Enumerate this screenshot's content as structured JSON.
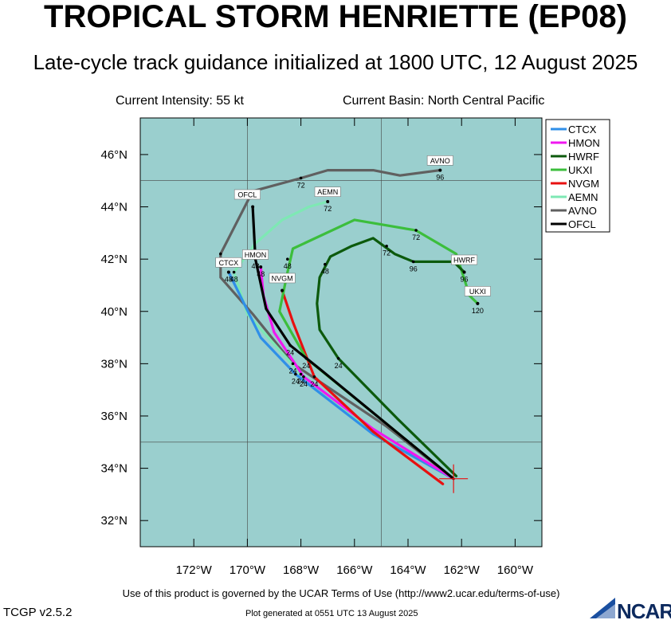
{
  "header": {
    "title": "TROPICAL STORM HENRIETTE (EP08)",
    "subtitle": "Late-cycle track guidance initialized at 1800 UTC, 12 August 2025",
    "intensity": "Current Intensity: 55 kt",
    "basin": "Current Basin: North Central Pacific"
  },
  "map": {
    "ocean_color": "#9acfce",
    "lon_range": [
      -174,
      -159
    ],
    "lat_range": [
      31,
      47.4
    ],
    "lon_ticks": [
      "172°W",
      "170°W",
      "168°W",
      "166°W",
      "164°W",
      "162°W",
      "160°W"
    ],
    "lat_ticks": [
      "32°N",
      "34°N",
      "36°N",
      "38°N",
      "40°N",
      "42°N",
      "44°N",
      "46°N"
    ],
    "current_position": {
      "lon": -162.3,
      "lat": 33.6
    }
  },
  "legend": {
    "entries": [
      {
        "name": "CTCX",
        "color": "#2f8fe8"
      },
      {
        "name": "HMON",
        "color": "#f018f0"
      },
      {
        "name": "HWRF",
        "color": "#0c5a0c"
      },
      {
        "name": "UKXI",
        "color": "#3cbe3c"
      },
      {
        "name": "NVGM",
        "color": "#e81010"
      },
      {
        "name": "AEMN",
        "color": "#7ee8b4"
      },
      {
        "name": "AVNO",
        "color": "#606060"
      },
      {
        "name": "OFCL",
        "color": "#000000"
      }
    ]
  },
  "tracks": [
    {
      "name": "AVNO",
      "color": "#606060",
      "label": "AVNO",
      "points": [
        [
          -162.3,
          33.6
        ],
        [
          -164.8,
          35.6
        ],
        [
          -168.3,
          38.0
        ],
        [
          -169.8,
          39.9
        ],
        [
          -171.0,
          41.3
        ],
        [
          -171.0,
          42.2
        ],
        [
          -170.5,
          43.2
        ],
        [
          -169.8,
          44.6
        ],
        [
          -168.0,
          45.1
        ],
        [
          -167.0,
          45.4
        ],
        [
          -165.3,
          45.4
        ],
        [
          -164.3,
          45.2
        ],
        [
          -162.8,
          45.4
        ]
      ],
      "hour_labels": [
        {
          "text": "24",
          "lon": -168.3,
          "lat": 38.0
        },
        {
          "text": "48",
          "lon": -171.0,
          "lat": 42.2
        },
        {
          "text": "72",
          "lon": -168.0,
          "lat": 45.1
        },
        {
          "text": "96",
          "lon": -162.8,
          "lat": 45.4
        }
      ]
    },
    {
      "name": "AEMN",
      "color": "#7ee8b4",
      "label": "AEMN",
      "points": [
        [
          -162.3,
          33.6
        ],
        [
          -165.3,
          35.4
        ],
        [
          -168.0,
          37.6
        ],
        [
          -170.0,
          39.9
        ],
        [
          -170.5,
          41.5
        ],
        [
          -169.7,
          42.6
        ],
        [
          -168.7,
          43.5
        ],
        [
          -167.7,
          44.0
        ],
        [
          -167.0,
          44.2
        ]
      ],
      "hour_labels": [
        {
          "text": "24",
          "lon": -168.0,
          "lat": 37.6
        },
        {
          "text": "48",
          "lon": -170.5,
          "lat": 41.5
        },
        {
          "text": "72",
          "lon": -167.0,
          "lat": 44.2
        }
      ]
    },
    {
      "name": "CTCX",
      "color": "#2f8fe8",
      "label": "CTCX",
      "points": [
        [
          -162.3,
          33.6
        ],
        [
          -165.3,
          35.3
        ],
        [
          -168.2,
          37.6
        ],
        [
          -169.5,
          39.0
        ],
        [
          -170.7,
          41.5
        ]
      ],
      "hour_labels": [
        {
          "text": "24",
          "lon": -168.2,
          "lat": 37.6
        },
        {
          "text": "48",
          "lon": -170.7,
          "lat": 41.5
        }
      ]
    },
    {
      "name": "HMON",
      "color": "#f018f0",
      "label": "HMON",
      "points": [
        [
          -162.3,
          33.6
        ],
        [
          -165.3,
          35.5
        ],
        [
          -167.9,
          37.5
        ],
        [
          -169.0,
          39.2
        ],
        [
          -169.4,
          40.6
        ],
        [
          -169.5,
          41.7
        ]
      ],
      "hour_labels": [
        {
          "text": "24",
          "lon": -167.9,
          "lat": 37.5
        },
        {
          "text": "48",
          "lon": -169.5,
          "lat": 41.7
        }
      ]
    },
    {
      "name": "NVGM",
      "color": "#e81010",
      "label": "NVGM",
      "points": [
        [
          -162.7,
          33.4
        ],
        [
          -165.3,
          35.4
        ],
        [
          -167.5,
          37.5
        ],
        [
          -168.3,
          39.6
        ],
        [
          -168.7,
          40.8
        ]
      ],
      "hour_labels": [
        {
          "text": "24",
          "lon": -167.5,
          "lat": 37.5
        }
      ]
    },
    {
      "name": "UKXI",
      "color": "#3cbe3c",
      "label": "UKXI",
      "points": [
        [
          -162.3,
          33.6
        ],
        [
          -164.8,
          35.7
        ],
        [
          -167.8,
          38.2
        ],
        [
          -168.8,
          40.0
        ],
        [
          -168.5,
          41.5
        ],
        [
          -168.3,
          42.4
        ],
        [
          -166.0,
          43.5
        ],
        [
          -163.7,
          43.1
        ],
        [
          -162.2,
          42.2
        ],
        [
          -161.7,
          40.6
        ],
        [
          -161.4,
          40.3
        ]
      ],
      "hour_labels": [
        {
          "text": "24",
          "lon": -167.8,
          "lat": 38.2
        },
        {
          "text": "48",
          "lon": -168.5,
          "lat": 42.0
        },
        {
          "text": "72",
          "lon": -163.7,
          "lat": 43.1
        },
        {
          "text": "120",
          "lon": -161.4,
          "lat": 40.3
        }
      ]
    },
    {
      "name": "HWRF",
      "color": "#0c5a0c",
      "label": "HWRF",
      "points": [
        [
          -162.2,
          33.7
        ],
        [
          -164.4,
          35.9
        ],
        [
          -166.6,
          38.2
        ],
        [
          -167.3,
          39.3
        ],
        [
          -167.4,
          40.3
        ],
        [
          -167.3,
          41.3
        ],
        [
          -166.9,
          42.1
        ],
        [
          -166.1,
          42.5
        ],
        [
          -165.3,
          42.8
        ],
        [
          -164.5,
          42.2
        ],
        [
          -163.8,
          41.9
        ],
        [
          -163.2,
          41.9
        ],
        [
          -162.3,
          41.9
        ],
        [
          -161.9,
          41.5
        ]
      ],
      "hour_labels": [
        {
          "text": "24",
          "lon": -166.6,
          "lat": 38.2
        },
        {
          "text": "48",
          "lon": -167.1,
          "lat": 41.8
        },
        {
          "text": "72",
          "lon": -164.8,
          "lat": 42.5
        },
        {
          "text": "96",
          "lon": -163.8,
          "lat": 41.9
        },
        {
          "text": "96",
          "lon": -161.9,
          "lat": 41.5
        }
      ]
    },
    {
      "name": "OFCL",
      "color": "#000000",
      "label": "OFCL",
      "points": [
        [
          -162.3,
          33.6
        ],
        [
          -164.8,
          35.7
        ],
        [
          -167.3,
          37.8
        ],
        [
          -168.4,
          38.7
        ],
        [
          -169.3,
          40.1
        ],
        [
          -169.7,
          42.0
        ],
        [
          -169.8,
          44.0
        ]
      ],
      "hour_labels": [
        {
          "text": "24",
          "lon": -168.4,
          "lat": 38.7
        },
        {
          "text": "48",
          "lon": -169.7,
          "lat": 42.0
        }
      ]
    }
  ],
  "model_tags": [
    {
      "text": "AVNO",
      "lon": -162.8,
      "lat": 45.5
    },
    {
      "text": "AEMN",
      "lon": -167.0,
      "lat": 44.3
    },
    {
      "text": "OFCL",
      "lon": -170.0,
      "lat": 44.2
    },
    {
      "text": "HMON",
      "lon": -169.7,
      "lat": 41.9
    },
    {
      "text": "CTCX",
      "lon": -170.7,
      "lat": 41.6
    },
    {
      "text": "NVGM",
      "lon": -168.7,
      "lat": 41.0
    },
    {
      "text": "HWRF",
      "lon": -161.9,
      "lat": 41.7
    },
    {
      "text": "UKXI",
      "lon": -161.4,
      "lat": 40.5
    }
  ],
  "footer": {
    "terms": "Use of this product is governed by the UCAR Terms of Use (http://www2.ucar.edu/terms-of-use)",
    "version": "TCGP v2.5.2",
    "generated": "Plot generated at 0551 UTC   13 August 2025",
    "logo_text": "NCAR"
  }
}
